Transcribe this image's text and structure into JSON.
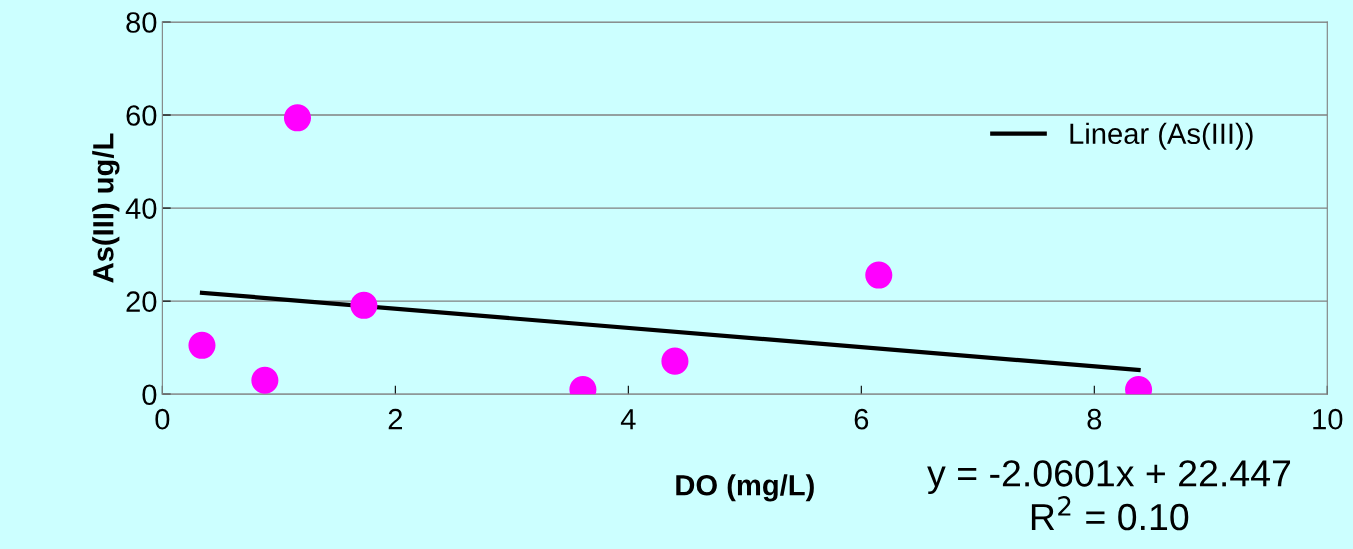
{
  "chart_data": {
    "type": "scatter",
    "xlabel": "DO (mg/L)",
    "ylabel": "As(III) ug/L",
    "xlim": [
      0,
      10
    ],
    "xticks": [
      0,
      2,
      4,
      6,
      8,
      10
    ],
    "ylim": [
      0,
      80
    ],
    "yticks": [
      0,
      20,
      40,
      60,
      80
    ],
    "grid": "y",
    "legend": "top right",
    "series": [
      {
        "marker": "circle",
        "color": "#ff00ff",
        "x": [
          0.34,
          0.88,
          1.16,
          1.73,
          3.61,
          4.4,
          6.15,
          8.38
        ],
        "values": [
          10.5,
          3,
          59.4,
          19.1,
          1,
          7.1,
          25.6,
          1
        ]
      },
      {
        "type": "line",
        "name": "Linear (As(III))",
        "color": "#000000",
        "line_style": "solid",
        "x": [
          0.34,
          8.38
        ],
        "values": [
          21.8,
          5.2
        ]
      }
    ],
    "annotations": [
      "y = -2.0601x + 22.447",
      "R$^{2}$ = 0.10"
    ]
  }
}
